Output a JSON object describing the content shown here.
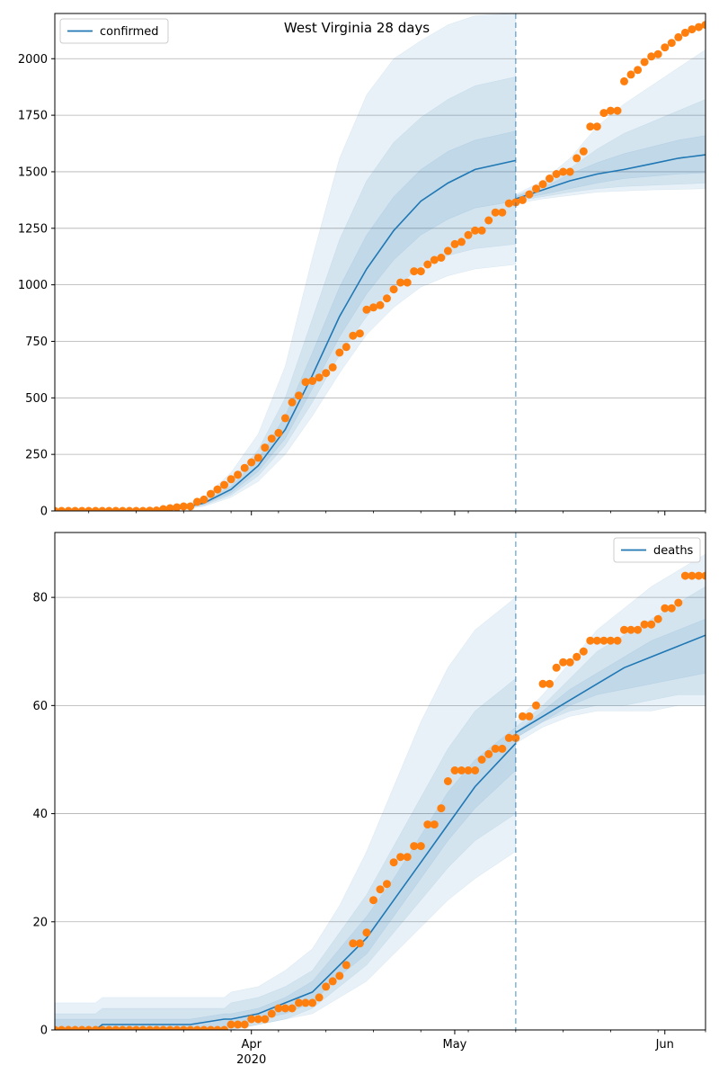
{
  "chart_data": [
    {
      "type": "line",
      "panel": "top",
      "title": "West Virginia 28 days",
      "xlabel": "",
      "ylabel": "",
      "ylim": [
        0,
        2200
      ],
      "yticks": [
        0,
        250,
        500,
        750,
        1000,
        1250,
        1500,
        1750,
        2000
      ],
      "xlim": [
        "2020-03-03",
        "2020-06-07"
      ],
      "x_major_ticks": [
        {
          "date": "2020-04-01",
          "label": "Apr",
          "sublabel": "2020"
        },
        {
          "date": "2020-05-01",
          "label": "May",
          "sublabel": ""
        },
        {
          "date": "2020-06-01",
          "label": "Jun",
          "sublabel": ""
        }
      ],
      "forecast_start": "2020-05-10",
      "legend": {
        "label": "confirmed",
        "position": "top-left"
      },
      "grid": "y",
      "colors": {
        "model": "#1f77b4",
        "observed": "#ff7f0e",
        "band": "#1f77b4",
        "vline": "#1f77b4"
      },
      "observed": {
        "x": [
          "2020-03-03",
          "2020-03-04",
          "2020-03-05",
          "2020-03-06",
          "2020-03-07",
          "2020-03-08",
          "2020-03-09",
          "2020-03-10",
          "2020-03-11",
          "2020-03-12",
          "2020-03-13",
          "2020-03-14",
          "2020-03-15",
          "2020-03-16",
          "2020-03-17",
          "2020-03-18",
          "2020-03-19",
          "2020-03-20",
          "2020-03-21",
          "2020-03-22",
          "2020-03-23",
          "2020-03-24",
          "2020-03-25",
          "2020-03-26",
          "2020-03-27",
          "2020-03-28",
          "2020-03-29",
          "2020-03-30",
          "2020-03-31",
          "2020-04-01",
          "2020-04-02",
          "2020-04-03",
          "2020-04-04",
          "2020-04-05",
          "2020-04-06",
          "2020-04-07",
          "2020-04-08",
          "2020-04-09",
          "2020-04-10",
          "2020-04-11",
          "2020-04-12",
          "2020-04-13",
          "2020-04-14",
          "2020-04-15",
          "2020-04-16",
          "2020-04-17",
          "2020-04-18",
          "2020-04-19",
          "2020-04-20",
          "2020-04-21",
          "2020-04-22",
          "2020-04-23",
          "2020-04-24",
          "2020-04-25",
          "2020-04-26",
          "2020-04-27",
          "2020-04-28",
          "2020-04-29",
          "2020-04-30",
          "2020-05-01",
          "2020-05-02",
          "2020-05-03",
          "2020-05-04",
          "2020-05-05",
          "2020-05-06",
          "2020-05-07",
          "2020-05-08",
          "2020-05-09",
          "2020-05-10",
          "2020-05-11",
          "2020-05-12",
          "2020-05-13",
          "2020-05-14",
          "2020-05-15",
          "2020-05-16",
          "2020-05-17",
          "2020-05-18",
          "2020-05-19",
          "2020-05-20",
          "2020-05-21",
          "2020-05-22",
          "2020-05-23",
          "2020-05-24",
          "2020-05-25",
          "2020-05-26",
          "2020-05-27",
          "2020-05-28",
          "2020-05-29",
          "2020-05-30",
          "2020-05-31",
          "2020-06-01",
          "2020-06-02",
          "2020-06-03",
          "2020-06-04",
          "2020-06-05",
          "2020-06-06",
          "2020-06-07"
        ],
        "y": [
          0,
          0,
          0,
          0,
          0,
          0,
          0,
          0,
          0,
          0,
          0,
          0,
          0,
          0,
          1,
          2,
          8,
          12,
          16,
          20,
          20,
          40,
          50,
          75,
          95,
          115,
          140,
          160,
          190,
          215,
          235,
          280,
          320,
          345,
          410,
          480,
          510,
          570,
          575,
          590,
          610,
          635,
          700,
          725,
          775,
          785,
          890,
          900,
          910,
          940,
          980,
          1010,
          1010,
          1060,
          1060,
          1090,
          1110,
          1120,
          1150,
          1180,
          1190,
          1220,
          1240,
          1240,
          1285,
          1320,
          1320,
          1360,
          1365,
          1375,
          1400,
          1425,
          1445,
          1470,
          1490,
          1500,
          1500,
          1560,
          1590,
          1700,
          1700,
          1760,
          1770,
          1770,
          1900,
          1930,
          1950,
          1985,
          2010,
          2020,
          2050,
          2070,
          2095,
          2115,
          2130,
          2140,
          2150
        ]
      },
      "model": {
        "x": [
          "2020-03-03",
          "2020-03-10",
          "2020-03-17",
          "2020-03-21",
          "2020-03-25",
          "2020-03-29",
          "2020-04-02",
          "2020-04-06",
          "2020-04-10",
          "2020-04-14",
          "2020-04-18",
          "2020-04-22",
          "2020-04-26",
          "2020-04-30",
          "2020-05-04",
          "2020-05-10",
          "2020-05-10",
          "2020-05-14",
          "2020-05-18",
          "2020-05-22",
          "2020-05-26",
          "2020-05-30",
          "2020-06-03",
          "2020-06-07"
        ],
        "y": [
          0,
          0,
          2,
          8,
          35,
          95,
          200,
          360,
          600,
          860,
          1070,
          1240,
          1370,
          1450,
          1510,
          1550,
          1380,
          1420,
          1460,
          1490,
          1510,
          1535,
          1560,
          1575
        ],
        "bands": [
          {
            "lo": [
              0,
              0,
              1,
              4,
              20,
              60,
              130,
              250,
              420,
              610,
              780,
              900,
              990,
              1040,
              1070,
              1090,
              1360,
              1380,
              1395,
              1410,
              1415,
              1420,
              1422,
              1425
            ],
            "hi": [
              0,
              0,
              4,
              14,
              60,
              170,
              340,
              640,
              1120,
              1560,
              1840,
              2000,
              2080,
              2150,
              2190,
              2200,
              1400,
              1460,
              1560,
              1700,
              1800,
              1880,
              1960,
              2040
            ]
          },
          {
            "lo": [
              0,
              0,
              1,
              5,
              25,
              70,
              155,
              290,
              480,
              690,
              860,
              985,
              1080,
              1130,
              1160,
              1180,
              1370,
              1390,
              1410,
              1425,
              1435,
              1440,
              1445,
              1450
            ],
            "hi": [
              0,
              0,
              3,
              11,
              48,
              130,
              270,
              500,
              850,
              1200,
              1460,
              1630,
              1740,
              1820,
              1880,
              1920,
              1395,
              1440,
              1515,
              1600,
              1670,
              1720,
              1770,
              1820
            ]
          },
          {
            "lo": [
              0,
              0,
              1,
              6,
              30,
              80,
              175,
              320,
              540,
              770,
              960,
              1110,
              1220,
              1290,
              1340,
              1370,
              1375,
              1400,
              1425,
              1450,
              1470,
              1480,
              1490,
              1495
            ],
            "hi": [
              0,
              0,
              2,
              9,
              40,
              110,
              230,
              420,
              700,
              990,
              1220,
              1390,
              1510,
              1590,
              1640,
              1680,
              1390,
              1430,
              1490,
              1540,
              1580,
              1610,
              1640,
              1660
            ]
          }
        ]
      }
    },
    {
      "type": "line",
      "panel": "bottom",
      "title": "",
      "xlabel": "",
      "ylabel": "",
      "ylim": [
        0,
        92
      ],
      "yticks": [
        0,
        20,
        40,
        60,
        80
      ],
      "xlim": [
        "2020-03-03",
        "2020-06-07"
      ],
      "x_major_ticks": [
        {
          "date": "2020-04-01",
          "label": "Apr",
          "sublabel": "2020"
        },
        {
          "date": "2020-05-01",
          "label": "May",
          "sublabel": ""
        },
        {
          "date": "2020-06-01",
          "label": "Jun",
          "sublabel": ""
        }
      ],
      "forecast_start": "2020-05-10",
      "legend": {
        "label": "deaths",
        "position": "top-right"
      },
      "grid": "y",
      "colors": {
        "model": "#1f77b4",
        "observed": "#ff7f0e",
        "band": "#1f77b4",
        "vline": "#1f77b4"
      },
      "observed": {
        "x": [
          "2020-03-03",
          "2020-03-04",
          "2020-03-05",
          "2020-03-06",
          "2020-03-07",
          "2020-03-08",
          "2020-03-09",
          "2020-03-10",
          "2020-03-11",
          "2020-03-12",
          "2020-03-13",
          "2020-03-14",
          "2020-03-15",
          "2020-03-16",
          "2020-03-17",
          "2020-03-18",
          "2020-03-19",
          "2020-03-20",
          "2020-03-21",
          "2020-03-22",
          "2020-03-23",
          "2020-03-24",
          "2020-03-25",
          "2020-03-26",
          "2020-03-27",
          "2020-03-28",
          "2020-03-29",
          "2020-03-30",
          "2020-03-31",
          "2020-04-01",
          "2020-04-02",
          "2020-04-03",
          "2020-04-04",
          "2020-04-05",
          "2020-04-06",
          "2020-04-07",
          "2020-04-08",
          "2020-04-09",
          "2020-04-10",
          "2020-04-11",
          "2020-04-12",
          "2020-04-13",
          "2020-04-14",
          "2020-04-15",
          "2020-04-16",
          "2020-04-17",
          "2020-04-18",
          "2020-04-19",
          "2020-04-20",
          "2020-04-21",
          "2020-04-22",
          "2020-04-23",
          "2020-04-24",
          "2020-04-25",
          "2020-04-26",
          "2020-04-27",
          "2020-04-28",
          "2020-04-29",
          "2020-04-30",
          "2020-05-01",
          "2020-05-02",
          "2020-05-03",
          "2020-05-04",
          "2020-05-05",
          "2020-05-06",
          "2020-05-07",
          "2020-05-08",
          "2020-05-09",
          "2020-05-10",
          "2020-05-11",
          "2020-05-12",
          "2020-05-13",
          "2020-05-14",
          "2020-05-15",
          "2020-05-16",
          "2020-05-17",
          "2020-05-18",
          "2020-05-19",
          "2020-05-20",
          "2020-05-21",
          "2020-05-22",
          "2020-05-23",
          "2020-05-24",
          "2020-05-25",
          "2020-05-26",
          "2020-05-27",
          "2020-05-28",
          "2020-05-29",
          "2020-05-30",
          "2020-05-31",
          "2020-06-01",
          "2020-06-02",
          "2020-06-03",
          "2020-06-04",
          "2020-06-05",
          "2020-06-06",
          "2020-06-07"
        ],
        "y": [
          0,
          0,
          0,
          0,
          0,
          0,
          0,
          0,
          0,
          0,
          0,
          0,
          0,
          0,
          0,
          0,
          0,
          0,
          0,
          0,
          0,
          0,
          0,
          0,
          0,
          0,
          1,
          1,
          1,
          2,
          2,
          2,
          3,
          4,
          4,
          4,
          5,
          5,
          5,
          6,
          8,
          9,
          10,
          12,
          16,
          16,
          18,
          24,
          26,
          27,
          31,
          32,
          32,
          34,
          34,
          38,
          38,
          41,
          46,
          48,
          48,
          48,
          48,
          50,
          51,
          52,
          52,
          54,
          54,
          58,
          58,
          60,
          64,
          64,
          67,
          68,
          68,
          69,
          70,
          72,
          72,
          72,
          72,
          72,
          74,
          74,
          74,
          75,
          75,
          76,
          78,
          78,
          79,
          84,
          84,
          84,
          84
        ]
      },
      "model": {
        "x": [
          "2020-03-03",
          "2020-03-09",
          "2020-03-10",
          "2020-03-22",
          "2020-03-23",
          "2020-03-28",
          "2020-03-29",
          "2020-04-02",
          "2020-04-06",
          "2020-04-10",
          "2020-04-14",
          "2020-04-18",
          "2020-04-22",
          "2020-04-26",
          "2020-04-30",
          "2020-05-04",
          "2020-05-10",
          "2020-05-10",
          "2020-05-14",
          "2020-05-18",
          "2020-05-22",
          "2020-05-26",
          "2020-05-30",
          "2020-06-03",
          "2020-06-07"
        ],
        "y": [
          0,
          0,
          1,
          1,
          1,
          2,
          2,
          3,
          5,
          7,
          12,
          17,
          24,
          31,
          38,
          45,
          53,
          55,
          58,
          61,
          64,
          67,
          69,
          71,
          73
        ],
        "bands": [
          {
            "lo": [
              0,
              0,
              0,
              0,
              0,
              0,
              0,
              1,
              2,
              3,
              6,
              9,
              14,
              19,
              24,
              28,
              33,
              53,
              56,
              58,
              59,
              59,
              59,
              60,
              60
            ],
            "hi": [
              5,
              5,
              6,
              6,
              6,
              6,
              7,
              8,
              11,
              15,
              23,
              33,
              45,
              57,
              67,
              74,
              80,
              57,
              62,
              68,
              74,
              78,
              82,
              85,
              88
            ]
          },
          {
            "lo": [
              0,
              0,
              0,
              0,
              0,
              0,
              0,
              1,
              2,
              4,
              8,
              12,
              18,
              24,
              30,
              35,
              40,
              54,
              57,
              59,
              60,
              60,
              61,
              62,
              62
            ],
            "hi": [
              3,
              3,
              4,
              4,
              4,
              4,
              5,
              6,
              8,
              11,
              18,
              25,
              34,
              43,
              52,
              59,
              65,
              56,
              60,
              65,
              70,
              73,
              76,
              79,
              82
            ]
          },
          {
            "lo": [
              0,
              0,
              0,
              0,
              0,
              0,
              1,
              2,
              3,
              5,
              10,
              14,
              21,
              28,
              35,
              41,
              48,
              54,
              57,
              60,
              62,
              63,
              64,
              65,
              66
            ],
            "hi": [
              2,
              2,
              2,
              2,
              2,
              3,
              3,
              4,
              6,
              9,
              15,
              21,
              28,
              36,
              44,
              50,
              56,
              55,
              59,
              63,
              66,
              69,
              72,
              74,
              76
            ]
          }
        ]
      }
    }
  ]
}
